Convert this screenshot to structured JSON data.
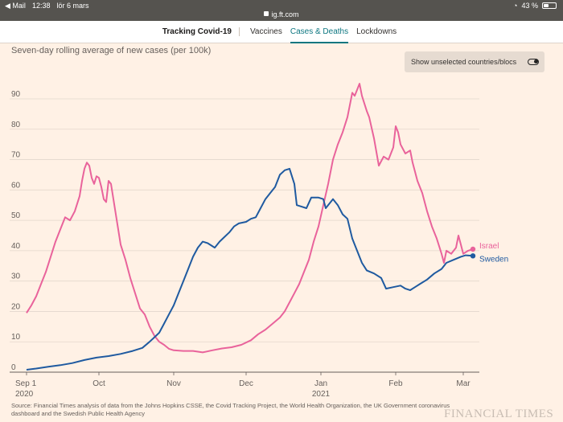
{
  "status_bar": {
    "app": "Mail",
    "time": "12:38",
    "date": "lör 6 mars",
    "url": "ig.ft.com",
    "battery": "43 %",
    "battery_level": 0.43
  },
  "nav": {
    "title": "Tracking Covid-19",
    "tabs": [
      {
        "label": "Vaccines",
        "active": false
      },
      {
        "label": "Cases & Deaths",
        "active": true
      },
      {
        "label": "Lockdowns",
        "active": false
      }
    ]
  },
  "chart_title": "Seven-day rolling average of new cases (per 100k)",
  "toggle": {
    "label": "Show unselected countries/blocs",
    "on": true
  },
  "source": "Source: Financial Times analysis of data from the Johns Hopkins CSSE, the Covid Tracking Project, the World Health Organization, the UK Government coronavirus dashboard and the Swedish Public Health Agency",
  "logo": "FINANCIAL TIMES",
  "colors": {
    "israel": "#e9639b",
    "sweden": "#1f5aa0",
    "accent": "#0d7680",
    "background": "#fff1e5"
  },
  "chart_data": {
    "type": "line",
    "title": "Seven-day rolling average of new cases (per 100k)",
    "ylim": [
      0,
      95
    ],
    "yticks": [
      0,
      10,
      20,
      30,
      40,
      50,
      60,
      70,
      80,
      90
    ],
    "x_range": [
      "2020-09-01",
      "2021-03-05"
    ],
    "x_ticks": [
      {
        "date": "2020-09-01",
        "label": "Sep 1",
        "sublabel": "2020"
      },
      {
        "date": "2020-10-01",
        "label": "Oct",
        "sublabel": ""
      },
      {
        "date": "2020-11-01",
        "label": "Nov",
        "sublabel": ""
      },
      {
        "date": "2020-12-01",
        "label": "Dec",
        "sublabel": ""
      },
      {
        "date": "2021-01-01",
        "label": "Jan",
        "sublabel": "2021"
      },
      {
        "date": "2021-02-01",
        "label": "Feb",
        "sublabel": ""
      },
      {
        "date": "2021-03-01",
        "label": "Mar",
        "sublabel": ""
      }
    ],
    "grid": true,
    "series": [
      {
        "name": "Israel",
        "color": "#e9639b",
        "points": [
          [
            "2020-09-01",
            19.5
          ],
          [
            "2020-09-03",
            22
          ],
          [
            "2020-09-05",
            25
          ],
          [
            "2020-09-07",
            29
          ],
          [
            "2020-09-09",
            33
          ],
          [
            "2020-09-11",
            38
          ],
          [
            "2020-09-13",
            43
          ],
          [
            "2020-09-15",
            47
          ],
          [
            "2020-09-17",
            51
          ],
          [
            "2020-09-19",
            50
          ],
          [
            "2020-09-21",
            53
          ],
          [
            "2020-09-23",
            58
          ],
          [
            "2020-09-24",
            63
          ],
          [
            "2020-09-25",
            67
          ],
          [
            "2020-09-26",
            69
          ],
          [
            "2020-09-27",
            68
          ],
          [
            "2020-09-28",
            64
          ],
          [
            "2020-09-29",
            62
          ],
          [
            "2020-09-30",
            64.5
          ],
          [
            "2020-10-01",
            64
          ],
          [
            "2020-10-02",
            61
          ],
          [
            "2020-10-03",
            57
          ],
          [
            "2020-10-04",
            56
          ],
          [
            "2020-10-05",
            63
          ],
          [
            "2020-10-06",
            62
          ],
          [
            "2020-10-08",
            52
          ],
          [
            "2020-10-10",
            42
          ],
          [
            "2020-10-12",
            37
          ],
          [
            "2020-10-14",
            31
          ],
          [
            "2020-10-16",
            26
          ],
          [
            "2020-10-18",
            21
          ],
          [
            "2020-10-20",
            19
          ],
          [
            "2020-10-22",
            15
          ],
          [
            "2020-10-24",
            12
          ],
          [
            "2020-10-26",
            10
          ],
          [
            "2020-10-28",
            9
          ],
          [
            "2020-10-30",
            7.7
          ],
          [
            "2020-11-01",
            7.2
          ],
          [
            "2020-11-05",
            7
          ],
          [
            "2020-11-09",
            7
          ],
          [
            "2020-11-13",
            6.5
          ],
          [
            "2020-11-17",
            7.2
          ],
          [
            "2020-11-21",
            7.8
          ],
          [
            "2020-11-25",
            8.2
          ],
          [
            "2020-11-29",
            9
          ],
          [
            "2020-12-03",
            10.5
          ],
          [
            "2020-12-06",
            12.5
          ],
          [
            "2020-12-09",
            14
          ],
          [
            "2020-12-12",
            16
          ],
          [
            "2020-12-15",
            18
          ],
          [
            "2020-12-17",
            20
          ],
          [
            "2020-12-19",
            23
          ],
          [
            "2020-12-21",
            26
          ],
          [
            "2020-12-23",
            29
          ],
          [
            "2020-12-25",
            33
          ],
          [
            "2020-12-27",
            37
          ],
          [
            "2020-12-29",
            43
          ],
          [
            "2020-12-31",
            48
          ],
          [
            "2021-01-02",
            55
          ],
          [
            "2021-01-04",
            62
          ],
          [
            "2021-01-06",
            70
          ],
          [
            "2021-01-08",
            75
          ],
          [
            "2021-01-10",
            79
          ],
          [
            "2021-01-12",
            84
          ],
          [
            "2021-01-13",
            88
          ],
          [
            "2021-01-14",
            92
          ],
          [
            "2021-01-15",
            91
          ],
          [
            "2021-01-16",
            93
          ],
          [
            "2021-01-17",
            95
          ],
          [
            "2021-01-18",
            91
          ],
          [
            "2021-01-20",
            86
          ],
          [
            "2021-01-21",
            84
          ],
          [
            "2021-01-23",
            77
          ],
          [
            "2021-01-25",
            68
          ],
          [
            "2021-01-27",
            71
          ],
          [
            "2021-01-29",
            70
          ],
          [
            "2021-01-31",
            74
          ],
          [
            "2021-02-01",
            81
          ],
          [
            "2021-02-02",
            79
          ],
          [
            "2021-02-03",
            75
          ],
          [
            "2021-02-05",
            72
          ],
          [
            "2021-02-07",
            73
          ],
          [
            "2021-02-08",
            69
          ],
          [
            "2021-02-10",
            63
          ],
          [
            "2021-02-12",
            59
          ],
          [
            "2021-02-14",
            53
          ],
          [
            "2021-02-16",
            48
          ],
          [
            "2021-02-18",
            44
          ],
          [
            "2021-02-20",
            39
          ],
          [
            "2021-02-21",
            36
          ],
          [
            "2021-02-22",
            40
          ],
          [
            "2021-02-24",
            39
          ],
          [
            "2021-02-26",
            41
          ],
          [
            "2021-02-27",
            45
          ],
          [
            "2021-02-28",
            42
          ],
          [
            "2021-03-01",
            39
          ],
          [
            "2021-03-03",
            40
          ],
          [
            "2021-03-05",
            40.5
          ]
        ]
      },
      {
        "name": "Sweden",
        "color": "#1f5aa0",
        "points": [
          [
            "2020-09-01",
            0.8
          ],
          [
            "2020-09-05",
            1.2
          ],
          [
            "2020-09-10",
            1.8
          ],
          [
            "2020-09-15",
            2.3
          ],
          [
            "2020-09-20",
            3
          ],
          [
            "2020-09-25",
            4
          ],
          [
            "2020-09-30",
            4.8
          ],
          [
            "2020-10-05",
            5.3
          ],
          [
            "2020-10-10",
            6
          ],
          [
            "2020-10-15",
            7
          ],
          [
            "2020-10-19",
            8
          ],
          [
            "2020-10-22",
            10
          ],
          [
            "2020-10-24",
            11.5
          ],
          [
            "2020-10-26",
            13
          ],
          [
            "2020-10-28",
            16
          ],
          [
            "2020-10-30",
            19
          ],
          [
            "2020-11-01",
            22
          ],
          [
            "2020-11-03",
            26
          ],
          [
            "2020-11-05",
            30
          ],
          [
            "2020-11-07",
            34
          ],
          [
            "2020-11-09",
            38
          ],
          [
            "2020-11-11",
            41
          ],
          [
            "2020-11-13",
            43
          ],
          [
            "2020-11-15",
            42.5
          ],
          [
            "2020-11-18",
            41
          ],
          [
            "2020-11-20",
            43
          ],
          [
            "2020-11-22",
            44.5
          ],
          [
            "2020-11-24",
            46
          ],
          [
            "2020-11-26",
            48
          ],
          [
            "2020-11-28",
            49
          ],
          [
            "2020-12-01",
            49.5
          ],
          [
            "2020-12-03",
            50.5
          ],
          [
            "2020-12-05",
            51
          ],
          [
            "2020-12-07",
            54
          ],
          [
            "2020-12-09",
            57
          ],
          [
            "2020-12-11",
            59
          ],
          [
            "2020-12-13",
            61
          ],
          [
            "2020-12-15",
            65
          ],
          [
            "2020-12-17",
            66.5
          ],
          [
            "2020-12-19",
            67
          ],
          [
            "2020-12-21",
            62
          ],
          [
            "2020-12-22",
            55
          ],
          [
            "2020-12-24",
            54.5
          ],
          [
            "2020-12-26",
            54
          ],
          [
            "2020-12-28",
            57.5
          ],
          [
            "2020-12-31",
            57.5
          ],
          [
            "2021-01-02",
            57
          ],
          [
            "2021-01-03",
            54
          ],
          [
            "2021-01-06",
            57
          ],
          [
            "2021-01-08",
            55
          ],
          [
            "2021-01-10",
            52
          ],
          [
            "2021-01-12",
            50.5
          ],
          [
            "2021-01-14",
            44
          ],
          [
            "2021-01-16",
            40
          ],
          [
            "2021-01-18",
            36
          ],
          [
            "2021-01-20",
            33.5
          ],
          [
            "2021-01-23",
            32.5
          ],
          [
            "2021-01-26",
            31
          ],
          [
            "2021-01-28",
            27.5
          ],
          [
            "2021-01-31",
            28
          ],
          [
            "2021-02-03",
            28.5
          ],
          [
            "2021-02-05",
            27.5
          ],
          [
            "2021-02-07",
            27
          ],
          [
            "2021-02-09",
            28
          ],
          [
            "2021-02-11",
            29
          ],
          [
            "2021-02-14",
            30.5
          ],
          [
            "2021-02-17",
            32.5
          ],
          [
            "2021-02-20",
            34
          ],
          [
            "2021-02-22",
            36
          ],
          [
            "2021-02-25",
            37
          ],
          [
            "2021-02-28",
            38
          ],
          [
            "2021-03-02",
            38.5
          ],
          [
            "2021-03-05",
            38.3
          ]
        ]
      }
    ]
  }
}
